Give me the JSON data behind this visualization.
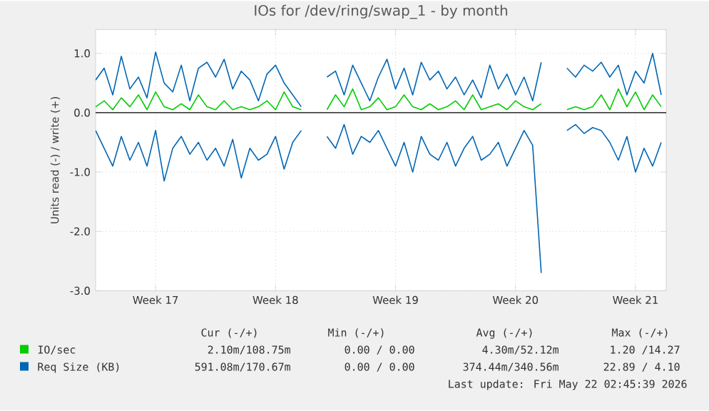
{
  "chart_data": {
    "type": "line",
    "title": "IOs for /dev/ring/swap_1 - by month",
    "ylabel": "Units read (-) / write (+)",
    "x": [
      "2026-04-20T00:00",
      "2026-04-20T12:00",
      "2026-04-21T00:00",
      "2026-04-21T12:00",
      "2026-04-22T00:00",
      "2026-04-22T12:00",
      "2026-04-23T00:00",
      "2026-04-23T12:00",
      "2026-04-24T00:00",
      "2026-04-24T12:00",
      "2026-04-25T00:00",
      "2026-04-25T12:00",
      "2026-04-26T00:00",
      "2026-04-26T12:00",
      "2026-04-27T00:00",
      "2026-04-27T12:00",
      "2026-04-28T00:00",
      "2026-04-28T12:00",
      "2026-04-29T00:00",
      "2026-04-29T12:00",
      "2026-04-30T00:00",
      "2026-04-30T12:00",
      "2026-05-01T00:00",
      "2026-05-01T12:00",
      "2026-05-02T00:00",
      "2026-05-02T12:00",
      "2026-05-03T00:00",
      "2026-05-03T12:00",
      "2026-05-04T00:00",
      "2026-05-04T12:00",
      "2026-05-05T00:00",
      "2026-05-05T12:00",
      "2026-05-06T00:00",
      "2026-05-06T12:00",
      "2026-05-07T00:00",
      "2026-05-07T12:00",
      "2026-05-08T00:00",
      "2026-05-08T12:00",
      "2026-05-09T00:00",
      "2026-05-09T12:00",
      "2026-05-10T00:00",
      "2026-05-10T12:00",
      "2026-05-11T00:00",
      "2026-05-11T12:00",
      "2026-05-12T00:00",
      "2026-05-12T12:00",
      "2026-05-13T00:00",
      "2026-05-13T12:00",
      "2026-05-14T00:00",
      "2026-05-14T12:00",
      "2026-05-15T00:00",
      "2026-05-15T12:00",
      "2026-05-16T00:00",
      "2026-05-16T12:00",
      "2026-05-17T00:00",
      "2026-05-17T12:00",
      "2026-05-18T00:00",
      "2026-05-18T12:00",
      "2026-05-19T00:00",
      "2026-05-19T12:00",
      "2026-05-20T00:00",
      "2026-05-20T12:00",
      "2026-05-21T00:00",
      "2026-05-21T12:00",
      "2026-05-22T00:00",
      "2026-05-22T12:00",
      "2026-05-23T00:00"
    ],
    "series": [
      {
        "name": "IO/sec",
        "color": "#00cc00",
        "values": [
          0.1,
          0.2,
          0.05,
          0.25,
          0.1,
          0.3,
          0.05,
          0.35,
          0.1,
          0.05,
          0.15,
          0.05,
          0.3,
          0.1,
          0.05,
          0.2,
          0.05,
          0.1,
          0.05,
          0.1,
          0.2,
          0.05,
          0.35,
          0.1,
          0.05,
          null,
          null,
          0.05,
          0.3,
          0.1,
          0.4,
          0.05,
          0.1,
          0.25,
          0.05,
          0.1,
          0.3,
          0.1,
          0.05,
          0.15,
          0.05,
          0.1,
          0.2,
          0.05,
          0.3,
          0.05,
          0.1,
          0.15,
          0.05,
          0.2,
          0.1,
          0.05,
          0.15,
          null,
          null,
          0.05,
          0.1,
          0.05,
          0.1,
          0.3,
          0.05,
          0.4,
          0.1,
          0.35,
          0.05,
          0.3,
          0.1
        ]
      },
      {
        "color": "#0066b3",
        "values": [
          -0.3,
          -0.6,
          -0.9,
          -0.4,
          -0.8,
          -0.5,
          -0.9,
          -0.3,
          -1.15,
          -0.6,
          -0.4,
          -0.7,
          -0.5,
          -0.8,
          -0.6,
          -0.9,
          -0.45,
          -1.1,
          -0.6,
          -0.8,
          -0.7,
          -0.4,
          -0.95,
          -0.5,
          -0.3,
          null,
          null,
          -0.4,
          -0.6,
          -0.2,
          -0.7,
          -0.4,
          -0.5,
          -0.3,
          -0.6,
          -0.9,
          -0.5,
          -1.0,
          -0.4,
          -0.7,
          -0.8,
          -0.5,
          -0.9,
          -0.6,
          -0.4,
          -0.8,
          -0.7,
          -0.5,
          -0.9,
          -0.6,
          -0.3,
          -0.55,
          -2.7,
          null,
          null,
          -0.3,
          -0.2,
          -0.35,
          -0.25,
          -0.3,
          -0.5,
          -0.8,
          -0.4,
          -1.0,
          -0.6,
          -0.9,
          -0.5
        ]
      },
      {
        "name": "Req Size (KB)",
        "color": "#0066b3",
        "values": [
          0.55,
          0.75,
          0.3,
          0.95,
          0.4,
          0.6,
          0.25,
          1.02,
          0.5,
          0.35,
          0.8,
          0.2,
          0.75,
          0.85,
          0.6,
          0.9,
          0.4,
          0.7,
          0.55,
          0.2,
          0.65,
          0.8,
          0.5,
          0.3,
          0.1,
          null,
          null,
          0.6,
          0.7,
          0.3,
          0.8,
          0.5,
          0.2,
          0.6,
          0.9,
          0.4,
          0.75,
          0.3,
          0.85,
          0.55,
          0.7,
          0.4,
          0.6,
          0.3,
          0.55,
          0.25,
          0.8,
          0.4,
          0.65,
          0.3,
          0.6,
          0.2,
          0.85,
          null,
          null,
          0.75,
          0.6,
          0.8,
          0.7,
          0.85,
          0.6,
          0.8,
          0.3,
          0.7,
          0.5,
          1.0,
          0.3
        ]
      }
    ],
    "xlim": [
      "2026-04-20T00:00",
      "2026-05-23T07:00"
    ],
    "xticks": [
      {
        "value": "2026-04-23T12:00",
        "label": "Week 17"
      },
      {
        "value": "2026-04-30T12:00",
        "label": "Week 18"
      },
      {
        "value": "2026-05-07T12:00",
        "label": "Week 19"
      },
      {
        "value": "2026-05-14T12:00",
        "label": "Week 20"
      },
      {
        "value": "2026-05-21T12:00",
        "label": "Week 21"
      }
    ],
    "ylim": [
      -3,
      1.4
    ],
    "yticks": [
      {
        "value": -3,
        "label": "-3.0"
      },
      {
        "value": -2,
        "label": "-2.0"
      },
      {
        "value": -1,
        "label": "-1.0"
      },
      {
        "value": 0,
        "label": "0.0"
      },
      {
        "value": 1,
        "label": "1.0"
      }
    ],
    "ref_lines": [
      {
        "axis": "y",
        "value": 0,
        "color": "#000000"
      }
    ],
    "grid": true,
    "legend": "bottom",
    "annotations": [
      "Cur (-/+)",
      "Min (-/+)",
      "Avg (-/+)",
      "Max (-/+)",
      "2.10m/108.75m",
      "0.00 / 0.00",
      "4.30m/52.12m",
      "1.20 /14.27",
      "591.08m/170.67m",
      "0.00 / 0.00",
      "374.44m/340.56m",
      "22.89 / 4.10",
      "Last update: Fri May 22 02:45:39 2026"
    ]
  }
}
